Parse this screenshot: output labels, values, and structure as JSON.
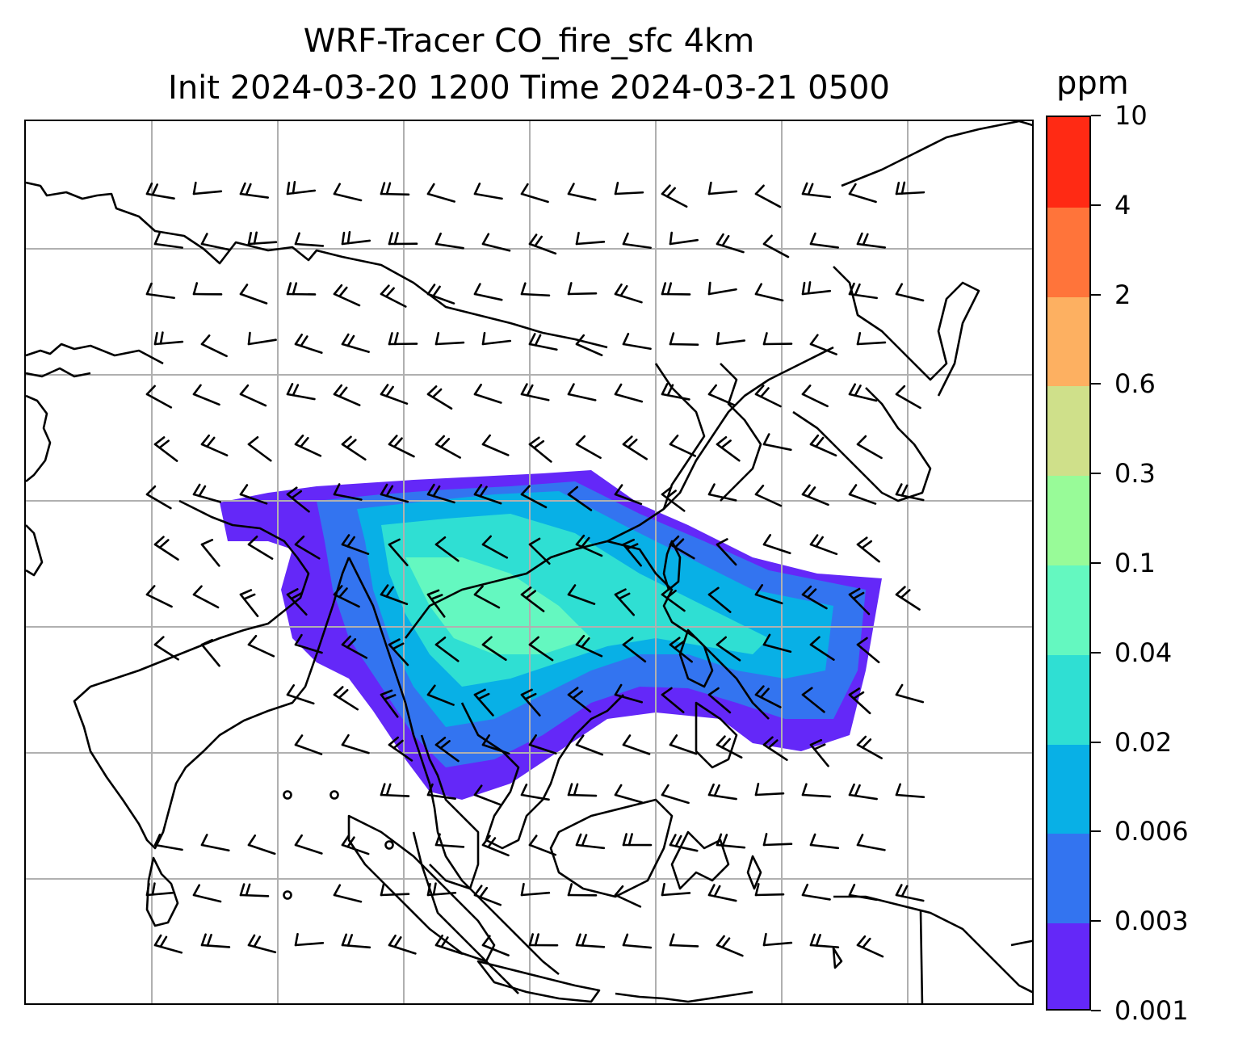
{
  "title": {
    "line1": "WRF-Tracer CO_fire_sfc 4km",
    "line2": "Init 2024-03-20 1200 Time 2024-03-21 0500"
  },
  "colorbar": {
    "unit": "ppm",
    "levels": [
      "0.001",
      "0.003",
      "0.006",
      "0.02",
      "0.04",
      "0.1",
      "0.3",
      "0.6",
      "2",
      "4",
      "10"
    ],
    "colors": [
      "#6428f8",
      "#3374f0",
      "#08b0e6",
      "#2fdfd3",
      "#64f8c0",
      "#98fb98",
      "#cfe08a",
      "#fdb061",
      "#ff743a",
      "#ff2a14"
    ]
  },
  "map": {
    "gridlines": true,
    "grid_color": "#b0b0b0",
    "coastline_color": "#000000",
    "vector_color": "#000000",
    "plume_levels": [
      0,
      1,
      2,
      3,
      4
    ]
  }
}
